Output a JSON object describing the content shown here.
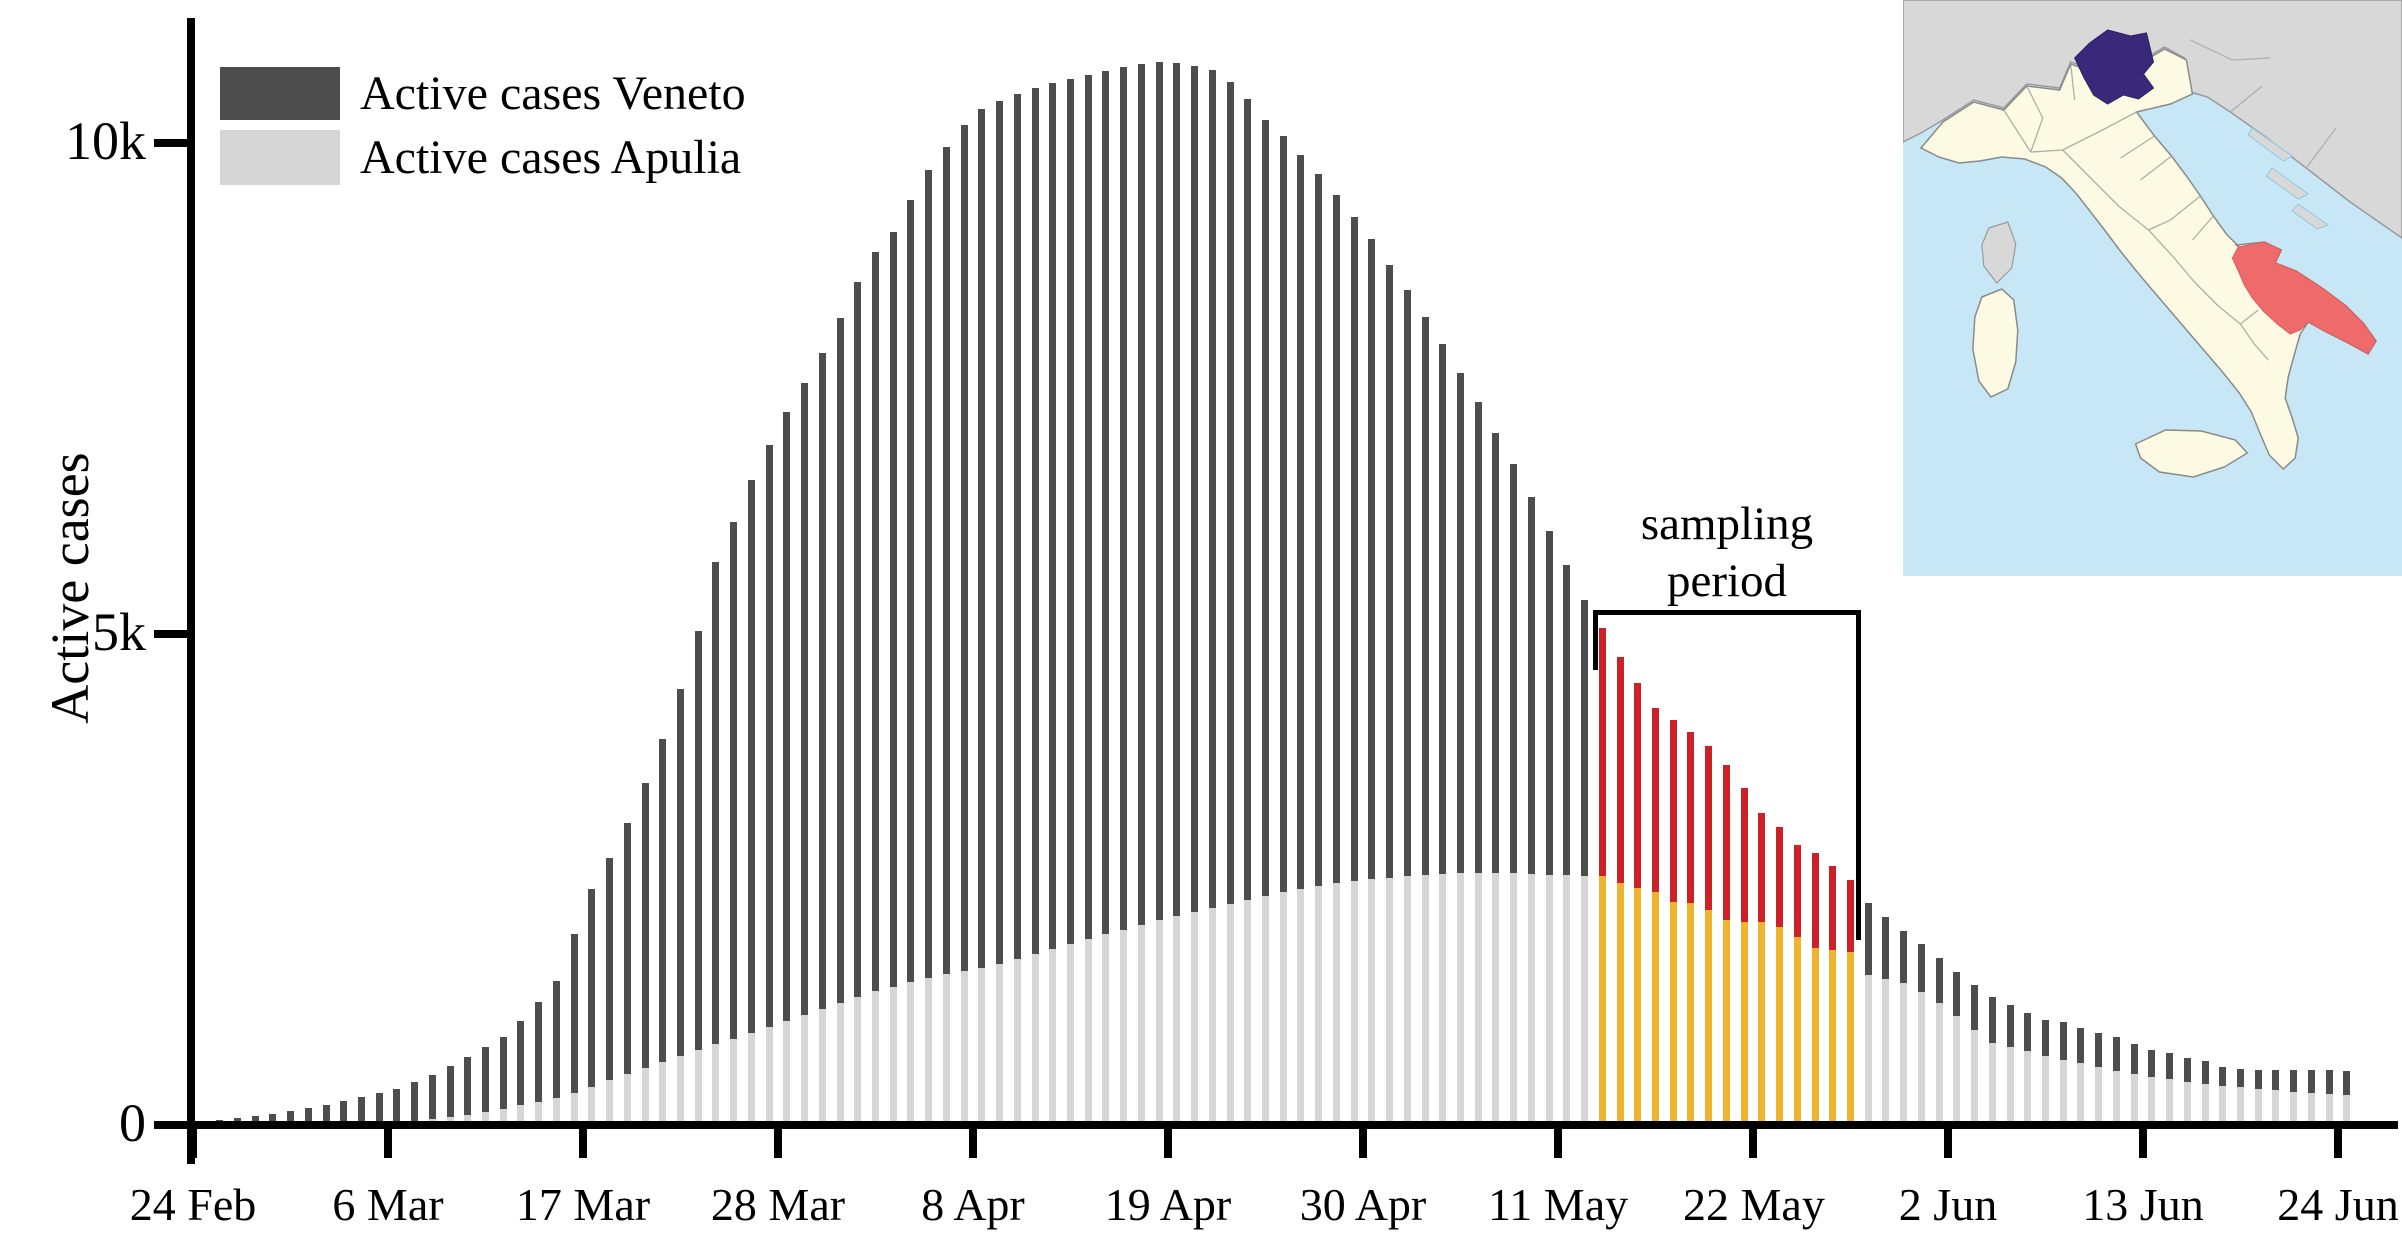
{
  "figure": {
    "y_axis_title": "Active cases",
    "annotation": {
      "line1": "sampling",
      "line2": "period"
    }
  },
  "legend": {
    "items": [
      {
        "label": "Active cases Veneto",
        "color": "#4d4d4d"
      },
      {
        "label": "Active cases Apulia",
        "color": "#d6d6d6"
      }
    ]
  },
  "colors": {
    "veneto_bar": "#4d4d4d",
    "apulia_bar": "#d6d6d6",
    "veneto_sampling": "#cd2127",
    "apulia_sampling": "#efb42e",
    "axis": "#000000"
  },
  "chart_data": {
    "type": "bar",
    "title": "",
    "xlabel": "",
    "ylabel": "Active cases",
    "ylim": [
      0,
      11200
    ],
    "grid": false,
    "legend_position": "top-left",
    "y_ticks": [
      {
        "value": 0,
        "label": "0"
      },
      {
        "value": 5000,
        "label": "5k"
      },
      {
        "value": 10000,
        "label": "10k"
      }
    ],
    "x_ticks": [
      {
        "day_index": 0,
        "label": "24 Feb"
      },
      {
        "day_index": 11,
        "label": "6 Mar"
      },
      {
        "day_index": 22,
        "label": "17 Mar"
      },
      {
        "day_index": 33,
        "label": "28 Mar"
      },
      {
        "day_index": 44,
        "label": "8 Apr"
      },
      {
        "day_index": 55,
        "label": "19 Apr"
      },
      {
        "day_index": 66,
        "label": "30 Apr"
      },
      {
        "day_index": 77,
        "label": "11 May"
      },
      {
        "day_index": 88,
        "label": "22 May"
      },
      {
        "day_index": 99,
        "label": "2 Jun"
      },
      {
        "day_index": 110,
        "label": "13 Jun"
      },
      {
        "day_index": 121,
        "label": "24 Jun"
      }
    ],
    "sampling_period": {
      "label": "sampling period",
      "start_day_index": 79,
      "end_day_index": 93
    },
    "series": [
      {
        "name": "Active cases Veneto",
        "values": [
          30,
          50,
          70,
          90,
          112,
          140,
          172,
          205,
          245,
          285,
          325,
          370,
          440,
          510,
          600,
          690,
          790,
          900,
          1060,
          1250,
          1470,
          1950,
          2400,
          2720,
          3080,
          3480,
          3930,
          4440,
          5030,
          5730,
          6140,
          6570,
          6920,
          7260,
          7560,
          7860,
          8220,
          8580,
          8890,
          9090,
          9420,
          9720,
          9960,
          10180,
          10350,
          10430,
          10500,
          10560,
          10610,
          10650,
          10690,
          10730,
          10770,
          10800,
          10820,
          10810,
          10780,
          10740,
          10620,
          10450,
          10230,
          10070,
          9880,
          9680,
          9470,
          9250,
          9020,
          8760,
          8500,
          8230,
          7950,
          7660,
          7360,
          7050,
          6730,
          6400,
          6050,
          5700,
          5350,
          5060,
          4770,
          4500,
          4250,
          4120,
          4000,
          3860,
          3670,
          3430,
          3180,
          3030,
          2850,
          2770,
          2640,
          2495,
          2260,
          2120,
          1980,
          1840,
          1700,
          1560,
          1430,
          1300,
          1220,
          1140,
          1070,
          1050,
          990,
          940,
          900,
          825,
          765,
          735,
          680,
          650,
          590,
          570,
          560,
          555,
          560,
          565,
          555,
          545
        ]
      },
      {
        "name": "Active cases Apulia",
        "values": [
          0,
          0,
          0,
          1,
          2,
          3,
          5,
          8,
          12,
          18,
          25,
          33,
          45,
          60,
          78,
          100,
          128,
          160,
          200,
          230,
          270,
          330,
          390,
          460,
          520,
          580,
          640,
          700,
          760,
          820,
          880,
          940,
          1000,
          1060,
          1120,
          1180,
          1240,
          1300,
          1360,
          1410,
          1460,
          1500,
          1540,
          1570,
          1600,
          1640,
          1690,
          1740,
          1790,
          1840,
          1890,
          1940,
          1990,
          2040,
          2090,
          2130,
          2170,
          2210,
          2250,
          2290,
          2330,
          2370,
          2400,
          2430,
          2460,
          2480,
          2500,
          2520,
          2535,
          2550,
          2560,
          2565,
          2570,
          2570,
          2565,
          2560,
          2550,
          2545,
          2540,
          2535,
          2465,
          2415,
          2370,
          2270,
          2260,
          2190,
          2090,
          2065,
          2065,
          2015,
          1915,
          1800,
          1780,
          1760,
          1530,
          1490,
          1450,
          1350,
          1240,
          1110,
          970,
          835,
          795,
          750,
          700,
          660,
          630,
          590,
          550,
          520,
          490,
          465,
          440,
          420,
          400,
          385,
          370,
          355,
          340,
          330,
          320,
          310
        ]
      }
    ]
  },
  "map": {
    "name": "italy-regions-inset",
    "sea_color": "#c7e7f6",
    "italy_color": "#fcfae2",
    "neighbor_color": "#d8d8d8",
    "border_color": "#909090",
    "highlights": [
      {
        "region": "Veneto",
        "color": "#38297b"
      },
      {
        "region": "Apulia",
        "color": "#ef6a6a"
      }
    ]
  }
}
